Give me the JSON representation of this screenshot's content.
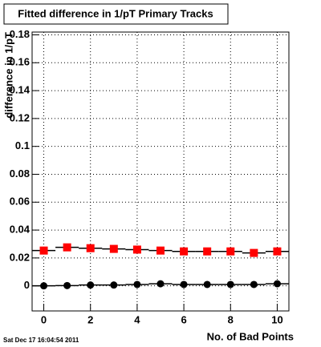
{
  "chart_data": {
    "type": "scatter",
    "title": "Fitted difference in 1/pT Primary Tracks",
    "x_label": "No. of Bad Points",
    "y_label": "difference in 1/pT",
    "timestamp": "Sat Dec 17 16:04:54 2011",
    "x": [
      0,
      1,
      2,
      3,
      4,
      5,
      6,
      7,
      8,
      9,
      10
    ],
    "series": [
      {
        "color": "#ff0000",
        "marker": "square",
        "values": [
          0.0253,
          0.0276,
          0.027,
          0.0265,
          0.026,
          0.0253,
          0.0247,
          0.0247,
          0.0247,
          0.0236,
          0.0247
        ]
      },
      {
        "color": "#000000",
        "marker": "circle",
        "values": [
          0,
          0.0002,
          0.0006,
          0.0006,
          0.001,
          0.0015,
          0.001,
          0.001,
          0.001,
          0.001,
          0.0015
        ]
      }
    ],
    "xlim": [
      -0.5,
      10.5
    ],
    "xticks": [
      0,
      2,
      4,
      6,
      8,
      10
    ],
    "ylim": [
      -0.018,
      0.182
    ],
    "yticks": [
      0,
      0.02,
      0.04,
      0.06,
      0.08,
      0.1,
      0.12,
      0.14,
      0.16,
      0.18
    ],
    "grid": true
  }
}
